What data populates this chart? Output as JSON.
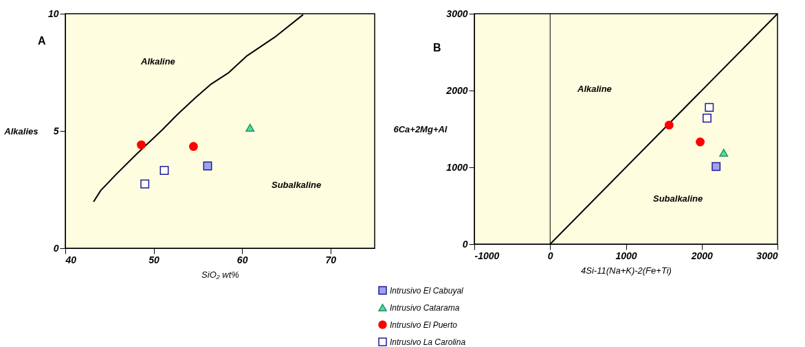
{
  "chart_data": [
    {
      "type": "scatter",
      "xlabel": "SiO₂ wt%",
      "ylabel": "Alkalies",
      "xlim": [
        40,
        75
      ],
      "xticks": [
        40,
        50,
        60,
        70
      ],
      "ylim": [
        0,
        10
      ],
      "yticks": [
        0,
        5,
        10
      ],
      "grid": false,
      "legend": "bottom",
      "annotations": [
        "A",
        "Alkaline",
        "Subalkaline"
      ],
      "series": [
        {
          "type": "line",
          "color": "#000000",
          "marker": "none",
          "line_style": "solid",
          "x": [
            43.2,
            44.0,
            45.8,
            48.1,
            51.0,
            52.7,
            54.7,
            56.5,
            58.5,
            60.5,
            63.7,
            66.9
          ],
          "values": [
            1.98,
            2.46,
            3.17,
            4.03,
            5.06,
            5.71,
            6.41,
            7.0,
            7.49,
            8.19,
            9.0,
            9.96
          ]
        },
        {
          "name": "Intrusivo El Cabuyal",
          "color": "#a0a0f0",
          "marker": "square",
          "x": [
            56.1
          ],
          "values": [
            3.51
          ]
        },
        {
          "name": "Intrusivo Catarama",
          "color": "#50e0a0",
          "marker": "triangle",
          "x": [
            60.9
          ],
          "values": [
            5.14
          ]
        },
        {
          "name": "Intrusivo El Puerto",
          "color": "#ff0000",
          "marker": "circle",
          "x": [
            48.6,
            54.5
          ],
          "values": [
            4.41,
            4.34
          ]
        },
        {
          "name": "Intrusivo La Carolina",
          "color": "#ffffff",
          "marker": "square",
          "x": [
            49.0,
            51.2
          ],
          "values": [
            2.74,
            3.32
          ]
        }
      ]
    },
    {
      "type": "scatter",
      "xlabel": "4Si-11(Na+K)-2(Fe+Ti)",
      "ylabel": "6Ca+2Mg+Al",
      "xlim": [
        -1000,
        3000
      ],
      "xticks": [
        -1000,
        0,
        1000,
        2000,
        3000
      ],
      "ylim": [
        0,
        3000
      ],
      "yticks": [
        0,
        1000,
        2000,
        3000
      ],
      "grid": false,
      "legend": "bottom",
      "annotations": [
        "B",
        "Alkaline",
        "Subalkaline"
      ],
      "ref_lines": [
        {
          "axis": "x",
          "value": 0,
          "color": "#000000"
        }
      ],
      "series": [
        {
          "type": "line",
          "color": "#000000",
          "marker": "none",
          "line_style": "solid",
          "x": [
            0,
            3000
          ],
          "values": [
            0,
            3000
          ]
        },
        {
          "name": "Intrusivo El Cabuyal",
          "color": "#a0a0f0",
          "marker": "square",
          "x": [
            2190
          ],
          "values": [
            1010
          ]
        },
        {
          "name": "Intrusivo Catarama",
          "color": "#50e0a0",
          "marker": "triangle",
          "x": [
            2290
          ],
          "values": [
            1190
          ]
        },
        {
          "name": "Intrusivo El Puerto",
          "color": "#ff0000",
          "marker": "circle",
          "x": [
            1570,
            1980
          ],
          "values": [
            1550,
            1330
          ]
        },
        {
          "name": "Intrusivo La Carolina",
          "color": "#ffffff",
          "marker": "square",
          "x": [
            2100,
            2070
          ],
          "values": [
            1780,
            1640
          ]
        }
      ]
    }
  ]
}
